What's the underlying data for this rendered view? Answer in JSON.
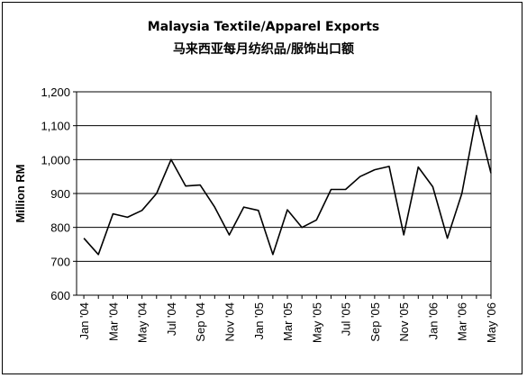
{
  "chart_data": {
    "type": "line",
    "title": "Malaysia Textile/Apparel Exports",
    "subtitle": "马来西亚每月纺织品/服饰出口额",
    "xlabel": "",
    "ylabel": "Million RM",
    "ylim": [
      600,
      1200
    ],
    "yticks": [
      600,
      700,
      800,
      900,
      1000,
      1100,
      1200
    ],
    "ytick_labels": [
      "600",
      "700",
      "800",
      "900",
      "1,000",
      "1,100",
      "1,200"
    ],
    "grid": true,
    "legend": "none",
    "x_labels": [
      "Jan '04",
      "Mar '04",
      "May '04",
      "Jul '04",
      "Sep '04",
      "Nov '04",
      "Jan '05",
      "Mar '05",
      "May '05",
      "Jul '05",
      "Sep '05",
      "Nov '05",
      "Jan '06",
      "Mar '06",
      "May '06"
    ],
    "x": [
      "Jan '04",
      "Feb '04",
      "Mar '04",
      "Apr '04",
      "May '04",
      "Jun '04",
      "Jul '04",
      "Aug '04",
      "Sep '04",
      "Oct '04",
      "Nov '04",
      "Dec '04",
      "Jan '05",
      "Feb '05",
      "Mar '05",
      "Apr '05",
      "May '05",
      "Jun '05",
      "Jul '05",
      "Aug '05",
      "Sep '05",
      "Oct '05",
      "Nov '05",
      "Dec '05",
      "Jan '06",
      "Feb '06",
      "Mar '06",
      "Apr '06",
      "May '06"
    ],
    "series": [
      {
        "values": [
          768,
          720,
          840,
          830,
          850,
          900,
          1000,
          922,
          925,
          860,
          778,
          860,
          850,
          720,
          852,
          800,
          822,
          912,
          912,
          950,
          970,
          980,
          778,
          978,
          920,
          768,
          900,
          1130,
          960
        ]
      }
    ],
    "line_color": "#000000"
  }
}
